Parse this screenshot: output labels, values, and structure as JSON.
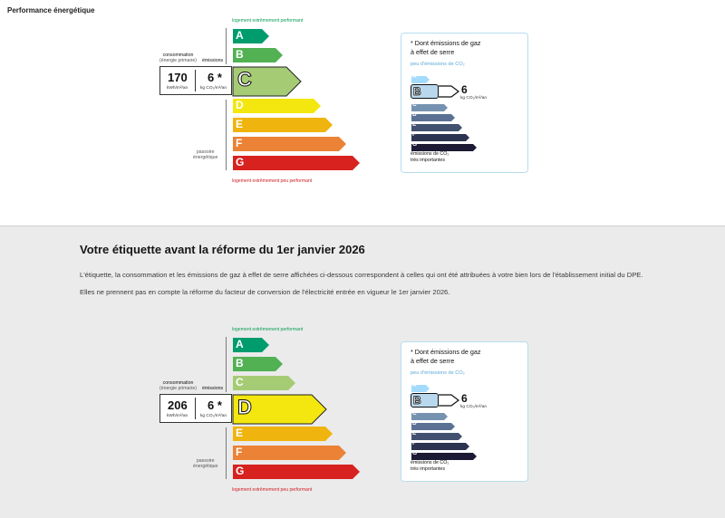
{
  "page_title": "Performance énergétique",
  "reform": {
    "title": "Votre étiquette avant la réforme du 1er janvier 2026",
    "paragraph1": "L'étiquette, la consommation et les émissions de gaz à effet de serre affichées ci-dessous correspondent à celles qui ont été attribuées à votre bien lors de l'établissement initial du DPE.",
    "paragraph2": "Elles ne prennent pas en compte la réforme du facteur de conversion de l'électricité entrée en vigueur le 1er janvier 2026."
  },
  "labels": {
    "top_caption": "logement extrêmement performant",
    "bottom_caption": "logement extrêmement peu performant",
    "consumption_label": "consommation",
    "consumption_sub": "(énergie primaire)",
    "emissions_label": "émissions",
    "passoire_line1": "passoire",
    "passoire_line2": "énergétique",
    "kwh_unit": "kWh/m²/an",
    "co2_unit": "kg CO₂/m²/an",
    "ges_title_line1": "* Dont émissions de gaz",
    "ges_title_line2": "à effet de serre",
    "ges_sub": "peu d'émissions de CO₂",
    "ges_foot_line1": "émissions de CO₂",
    "ges_foot_line2": "très importantes"
  },
  "energy_classes": [
    "A",
    "B",
    "C",
    "D",
    "E",
    "F",
    "G"
  ],
  "energy_colors": [
    "#009c6d",
    "#52b153",
    "#a5cc74",
    "#f4e70f",
    "#f0b40f",
    "#eb8235",
    "#d7221f"
  ],
  "ges_colors": [
    "#a3dbfc",
    "#8ab5d2",
    "#7692b1",
    "#5b7194",
    "#425170",
    "#2c3451",
    "#1c1a34"
  ],
  "diagnostics": [
    {
      "energy_class": "C",
      "consumption": "170",
      "emissions": "6 *",
      "ges_class": "B",
      "ges_value": "6"
    },
    {
      "energy_class": "D",
      "consumption": "206",
      "emissions": "6 *",
      "ges_class": "B",
      "ges_value": "6"
    }
  ]
}
